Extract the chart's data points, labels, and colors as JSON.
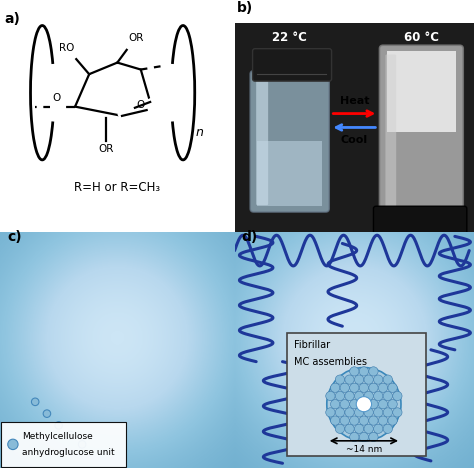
{
  "panel_labels": [
    "a)",
    "b)",
    "c)",
    "d)"
  ],
  "bg_white": "#ffffff",
  "dark_blue": "#1a237e",
  "chain_blue": "#1e3799",
  "bg_panel_cd": "#7ab5d5",
  "bg_center_cd": "#c5dff0",
  "label_color": "#000000",
  "temp_22": "22 °C",
  "temp_60": "60 °C",
  "heat_text": "Heat",
  "cool_text": "Cool",
  "formula_text": "R=H or R=CH₃",
  "legend_text1": "Methylcellulose",
  "legend_text2": "anhydroglucose unit",
  "fibrillar_text1": "Fibrillar",
  "fibrillar_text2": "MC assemblies",
  "size_text": "~14 nm",
  "bead_face": "#88bbd8",
  "bead_edge": "#4488bb",
  "photo_bg": "#1c1c1c",
  "vial_left_body": "#b0c8d8",
  "vial_left_water": "#d0e4f0",
  "vial_right_body": "#c8c8c8",
  "vial_right_opaque": "#e8e8e8",
  "panel_border": "#cccccc"
}
